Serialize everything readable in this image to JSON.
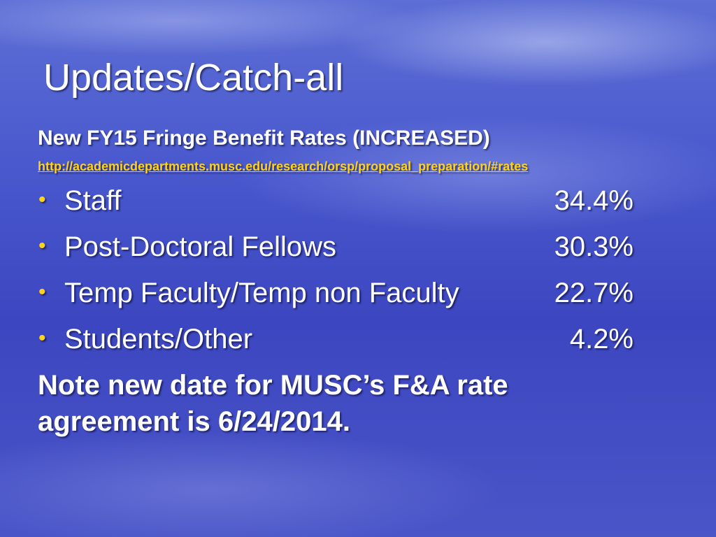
{
  "slide": {
    "title": "Updates/Catch-all",
    "subtitle": "New FY15 Fringe Benefit Rates (INCREASED)",
    "link": "http://academicdepartments.musc.edu/research/orsp/proposal_preparation/#rates",
    "items": [
      {
        "label": "Staff",
        "rate": "34.4%"
      },
      {
        "label": "Post-Doctoral Fellows",
        "rate": "30.3%"
      },
      {
        "label": "Temp Faculty/Temp non Faculty",
        "rate": "22.7%"
      },
      {
        "label": "Students/Other",
        "rate": "4.2%"
      }
    ],
    "note": [
      "Note new date for MUSC’s F&A rate",
      "agreement is 6/24/2014."
    ]
  }
}
